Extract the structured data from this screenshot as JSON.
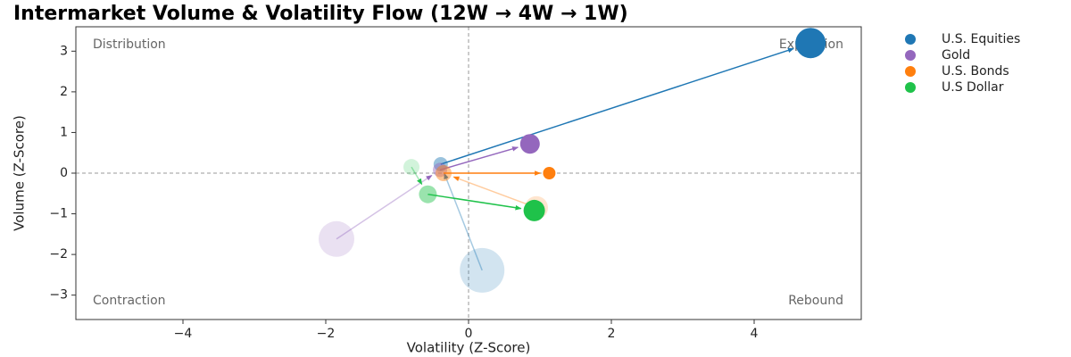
{
  "chart_data": {
    "type": "trajectory-scatter",
    "title": "Intermarket Volume & Volatility Flow (12W → 4W → 1W)",
    "x_label": "Volatility (Z-Score)",
    "y_label": "Volume (Z-Score)",
    "xlim": [
      -5.5,
      5.5
    ],
    "ylim": [
      -3.6,
      3.6
    ],
    "xticks": [
      {
        "value": -4,
        "label": "−4"
      },
      {
        "value": -2,
        "label": "−2"
      },
      0,
      2,
      4
    ],
    "yticks": [
      {
        "value": -3,
        "label": "−3"
      },
      {
        "value": -2,
        "label": "−2"
      },
      {
        "value": -1,
        "label": "−1"
      },
      0,
      1,
      2,
      3
    ],
    "quadrant_lines": {
      "x": 0,
      "y": 0
    },
    "quadrants": {
      "top_left": "Distribution",
      "top_right": "Expansion",
      "bottom_left": "Contraction",
      "bottom_right": "Rebound"
    },
    "legend": "outside-right",
    "series": [
      {
        "name": "U.S. Equities",
        "color": "#1f77b4",
        "x": [
          0.19,
          -0.39,
          4.79
        ],
        "values": [
          -2.39,
          0.22,
          3.2
        ],
        "sizes": [
          25,
          8,
          17
        ]
      },
      {
        "name": "Gold",
        "color": "#9467bd",
        "x": [
          -1.85,
          -0.4,
          0.86
        ],
        "values": [
          -1.62,
          0.08,
          0.72
        ],
        "sizes": [
          20,
          8,
          11
        ]
      },
      {
        "name": "U.S. Bonds",
        "color": "#ff7f0e",
        "x": [
          0.95,
          -0.35,
          1.13
        ],
        "values": [
          -0.85,
          0.0,
          0.0
        ],
        "sizes": [
          13,
          9,
          7
        ]
      },
      {
        "name": "U.S Dollar",
        "color": "#1fc24a",
        "x": [
          -0.8,
          -0.57,
          0.92
        ],
        "values": [
          0.15,
          -0.52,
          -0.92
        ],
        "sizes": [
          9,
          10,
          12
        ]
      }
    ]
  }
}
